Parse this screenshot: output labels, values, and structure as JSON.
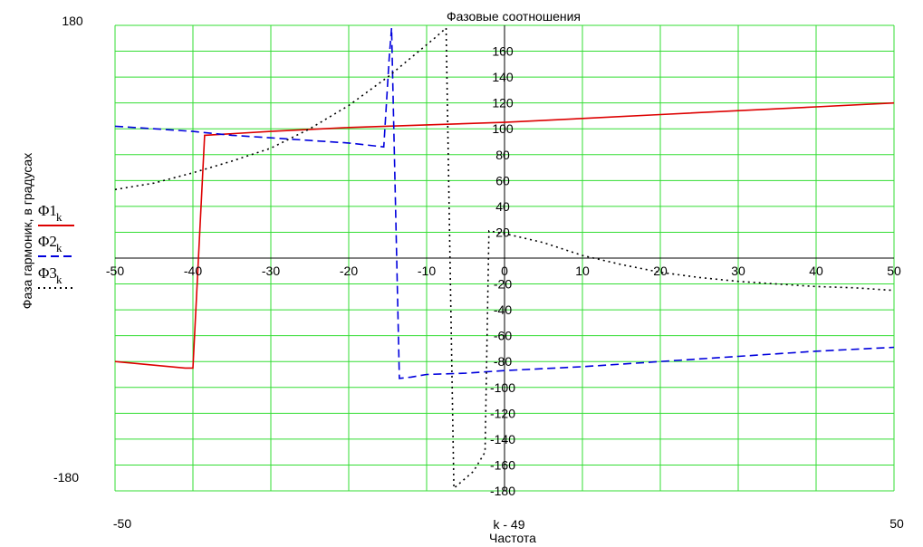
{
  "chart_data": {
    "type": "line",
    "title": "Фазовые соотношения",
    "xlabel": "Частота",
    "xexpr": "k - 49",
    "ylabel": "Фаза гармоник, в градусах",
    "xlim": [
      -50,
      50
    ],
    "ylim": [
      -180,
      180
    ],
    "xlim_labels": [
      "-50",
      "50"
    ],
    "ylim_labels": [
      "180",
      "-180"
    ],
    "x_ticks": [
      -50,
      -40,
      -30,
      -20,
      -10,
      0,
      10,
      20,
      30,
      40,
      50
    ],
    "y_ticks": [
      160,
      140,
      120,
      100,
      80,
      60,
      40,
      20,
      -20,
      -40,
      -60,
      -80,
      -100,
      -120,
      -140,
      -160,
      -180
    ],
    "grid": true,
    "grid_color": "#33dd33",
    "series": [
      {
        "name": "Φ1",
        "sub": "k",
        "color": "#dd0000",
        "dash": "solid",
        "points": [
          [
            -50,
            -80
          ],
          [
            -41,
            -85
          ],
          [
            -40,
            -85
          ],
          [
            -38.5,
            95
          ],
          [
            -30,
            98
          ],
          [
            -20,
            101
          ],
          [
            -10,
            103
          ],
          [
            0,
            105
          ],
          [
            10,
            108
          ],
          [
            20,
            111
          ],
          [
            30,
            114
          ],
          [
            40,
            117
          ],
          [
            50,
            120
          ]
        ]
      },
      {
        "name": "Φ2",
        "sub": "k",
        "color": "#0000dd",
        "dash": "dashed",
        "points": [
          [
            -50,
            102
          ],
          [
            -45,
            100
          ],
          [
            -40,
            98
          ],
          [
            -35,
            95
          ],
          [
            -30,
            93
          ],
          [
            -25,
            91
          ],
          [
            -20,
            89
          ],
          [
            -15.5,
            86
          ],
          [
            -14.8,
            155
          ],
          [
            -14.5,
            178
          ],
          [
            -13.5,
            -93
          ],
          [
            -12,
            -92
          ],
          [
            -10,
            -90
          ],
          [
            -5,
            -89
          ],
          [
            0,
            -87
          ],
          [
            10,
            -84
          ],
          [
            20,
            -80
          ],
          [
            30,
            -76
          ],
          [
            40,
            -72
          ],
          [
            50,
            -69
          ]
        ]
      },
      {
        "name": "Φ3",
        "sub": "k",
        "color": "#000000",
        "dash": "dotted",
        "points": [
          [
            -50,
            53
          ],
          [
            -45,
            58
          ],
          [
            -40,
            66
          ],
          [
            -35,
            75
          ],
          [
            -30,
            85
          ],
          [
            -25,
            100
          ],
          [
            -20,
            118
          ],
          [
            -15,
            140
          ],
          [
            -12,
            155
          ],
          [
            -9,
            170
          ],
          [
            -7.5,
            178
          ],
          [
            -6.5,
            -178
          ],
          [
            -4,
            -165
          ],
          [
            -2.5,
            -150
          ],
          [
            -2,
            21
          ],
          [
            0,
            19
          ],
          [
            5,
            12
          ],
          [
            10,
            2
          ],
          [
            15,
            -5
          ],
          [
            20,
            -11
          ],
          [
            25,
            -15
          ],
          [
            30,
            -18
          ],
          [
            35,
            -20
          ],
          [
            40,
            -22
          ],
          [
            45,
            -23
          ],
          [
            50,
            -25
          ]
        ]
      }
    ]
  }
}
